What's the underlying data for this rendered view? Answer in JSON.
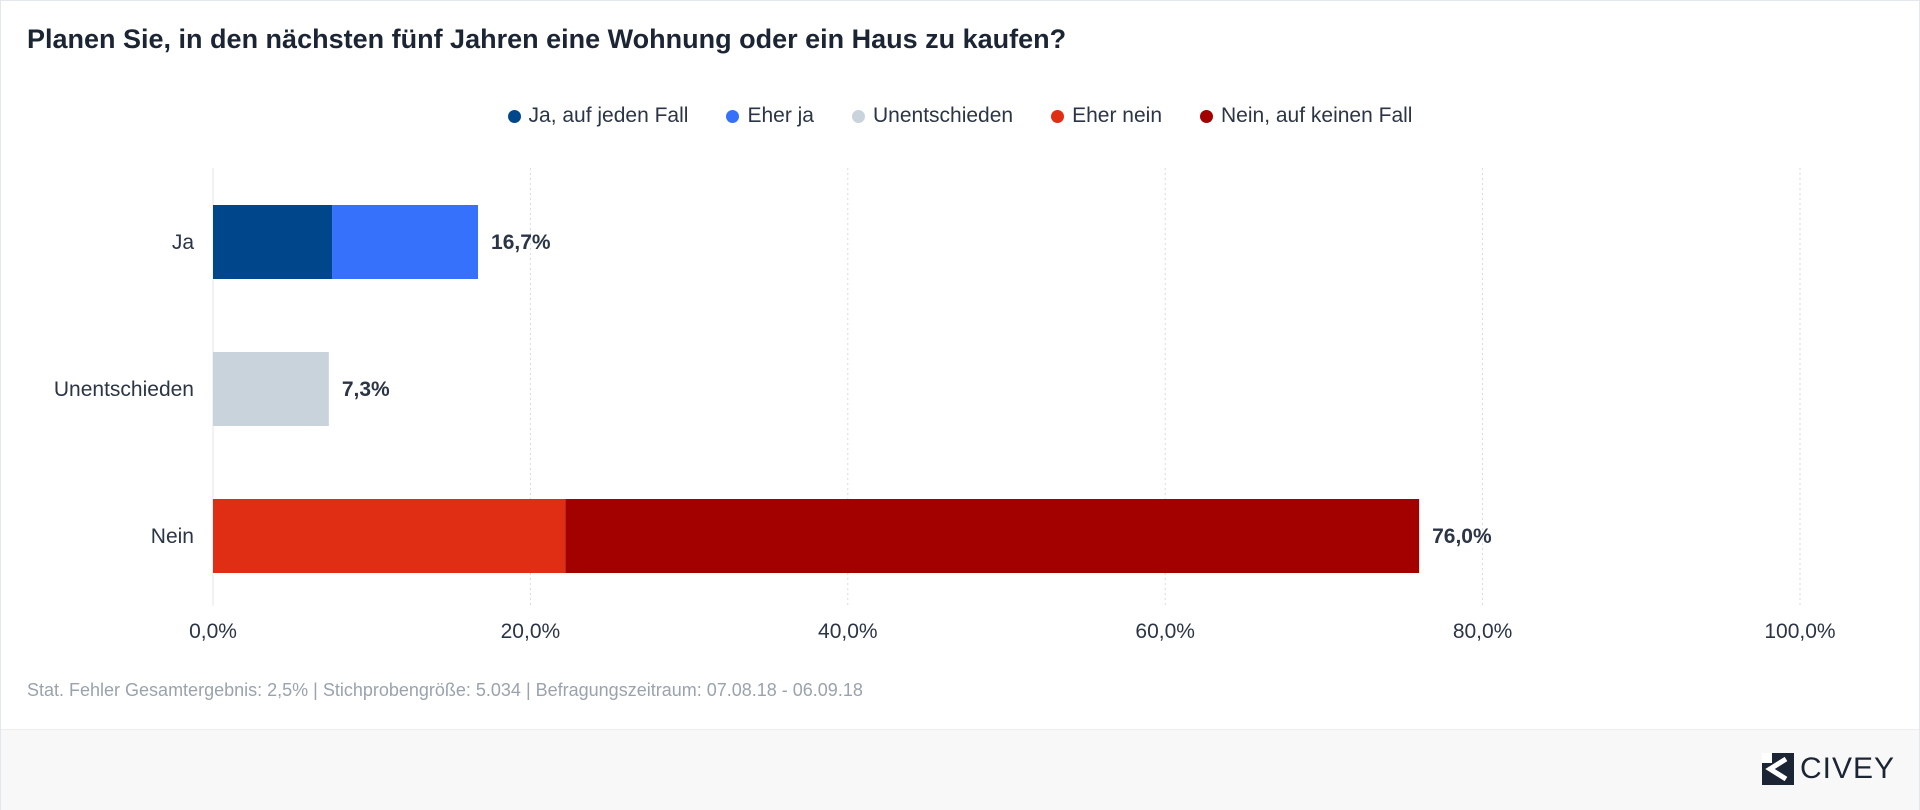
{
  "title": "Planen Sie, in den nächsten fünf Jahren eine Wohnung oder ein Haus zu kaufen?",
  "legend": [
    {
      "label": "Ja, auf jeden Fall",
      "color": "#00468b"
    },
    {
      "label": "Eher ja",
      "color": "#3571fb"
    },
    {
      "label": "Unentschieden",
      "color": "#c9d3dc"
    },
    {
      "label": "Eher nein",
      "color": "#e02e15"
    },
    {
      "label": "Nein, auf keinen Fall",
      "color": "#a30000"
    }
  ],
  "chart_data": {
    "type": "bar",
    "orientation": "horizontal",
    "stacked": true,
    "categories": [
      "Ja",
      "Unentschieden",
      "Nein"
    ],
    "series": [
      {
        "name": "Ja, auf jeden Fall",
        "color": "#00468b",
        "values": [
          7.5,
          0,
          0
        ]
      },
      {
        "name": "Eher ja",
        "color": "#3571fb",
        "values": [
          9.2,
          0,
          0
        ]
      },
      {
        "name": "Unentschieden",
        "color": "#c9d3dc",
        "values": [
          0,
          7.3,
          0
        ]
      },
      {
        "name": "Eher nein",
        "color": "#e02e15",
        "values": [
          0,
          0,
          22.2
        ]
      },
      {
        "name": "Nein, auf keinen Fall",
        "color": "#a30000",
        "values": [
          0,
          0,
          53.8
        ]
      }
    ],
    "totals": [
      "16,7%",
      "7,3%",
      "76,0%"
    ],
    "xlim": [
      0,
      100
    ],
    "xticks": [
      0,
      20,
      40,
      60,
      80,
      100
    ],
    "xtick_labels": [
      "0,0%",
      "20,0%",
      "40,0%",
      "60,0%",
      "80,0%",
      "100,0%"
    ],
    "grid": true,
    "legend_position": "top"
  },
  "note": "Stat. Fehler Gesamtergebnis: 2,5% | Stichprobengröße: 5.034 | Befragungszeitraum: 07.08.18 - 06.09.18",
  "brand": {
    "name": "CIVEY"
  }
}
